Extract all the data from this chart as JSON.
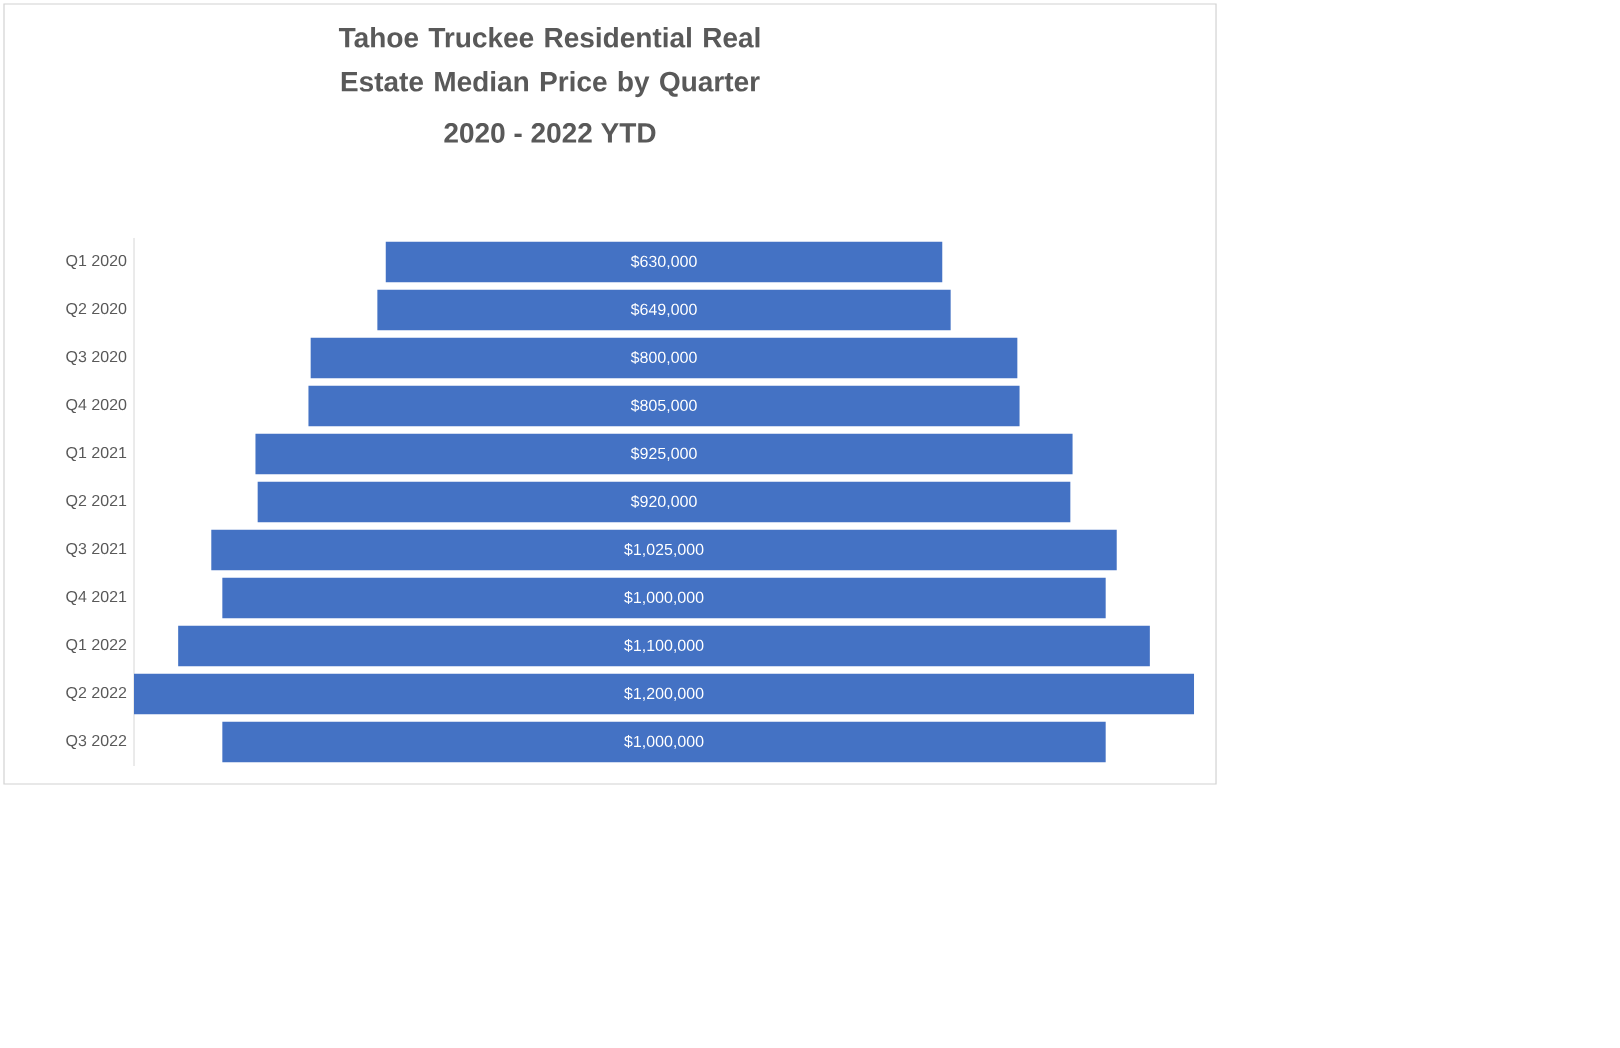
{
  "chart_data": {
    "type": "other",
    "title": "Tahoe Truckee Residential Real Estate Median Price by Quarter",
    "subtitle": "2020 - 2022 YTD",
    "categories": [
      "Q1 2020",
      "Q2 2020",
      "Q3 2020",
      "Q4 2020",
      "Q1 2021",
      "Q2 2021",
      "Q3 2021",
      "Q4 2021",
      "Q1 2022",
      "Q2 2022",
      "Q3 2022"
    ],
    "values": [
      630000,
      649000,
      800000,
      805000,
      925000,
      920000,
      1025000,
      1000000,
      1100000,
      1200000,
      1000000
    ],
    "value_labels": [
      "$630,000",
      "$649,000",
      "$800,000",
      "$805,000",
      "$925,000",
      "$920,000",
      "$1,025,000",
      "$1,000,000",
      "$1,100,000",
      "$1,200,000",
      "$1,000,000"
    ],
    "color": "#4472c4"
  }
}
